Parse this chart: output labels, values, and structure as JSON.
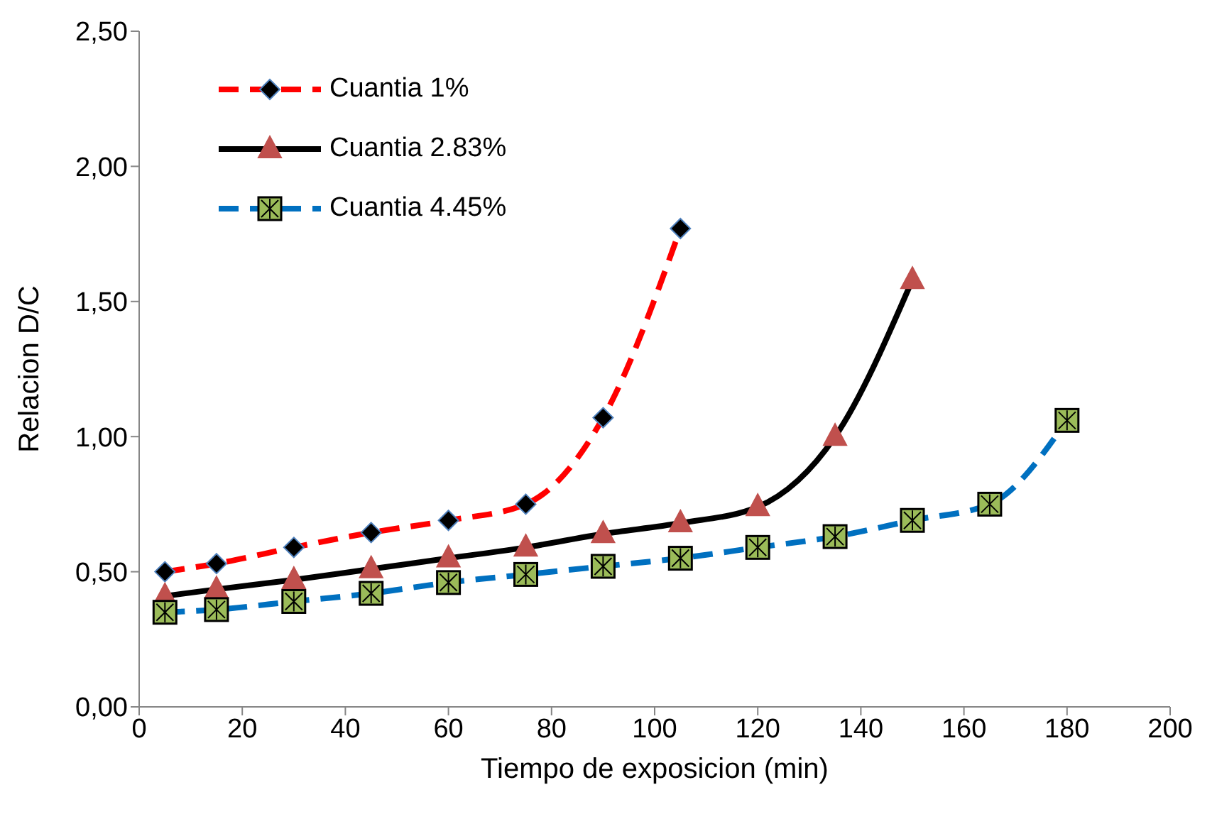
{
  "chart_data": {
    "type": "line",
    "xlabel": "Tiempo de exposicion (min)",
    "ylabel": "Relacion  D/C",
    "xlim": [
      0,
      200
    ],
    "xticks": [
      0,
      20,
      40,
      60,
      80,
      100,
      120,
      140,
      160,
      180,
      200
    ],
    "ylim": [
      0,
      2.5
    ],
    "yticks": [
      {
        "value": 0,
        "label": "0,00"
      },
      {
        "value": 0.5,
        "label": "0,50"
      },
      {
        "value": 1,
        "label": "1,00"
      },
      {
        "value": 1.5,
        "label": "1,50"
      },
      {
        "value": 2,
        "label": "2,00"
      },
      {
        "value": 2.5,
        "label": "2,50"
      }
    ],
    "grid": false,
    "legend": "top left",
    "series": [
      {
        "name": "Cuantia 1%",
        "color": "#ff0000",
        "line_style": "dashed",
        "marker": "diamond",
        "x": [
          5,
          15,
          30,
          45,
          60,
          75,
          90,
          105
        ],
        "values": [
          0.5,
          0.53,
          0.59,
          0.645,
          0.69,
          0.75,
          1.07,
          1.77
        ]
      },
      {
        "name": "Cuantia 2.83%",
        "color": "#000000",
        "line_style": "solid",
        "marker": "triangle",
        "x": [
          5,
          15,
          30,
          45,
          60,
          75,
          90,
          105,
          120,
          135,
          150
        ],
        "values": [
          0.41,
          0.435,
          0.47,
          0.51,
          0.55,
          0.59,
          0.64,
          0.68,
          0.74,
          1.0,
          1.58
        ]
      },
      {
        "name": "Cuantia 4.45%",
        "color": "#0070c0",
        "line_style": "dashed",
        "marker": "square",
        "x": [
          5,
          15,
          30,
          45,
          60,
          75,
          90,
          105,
          120,
          135,
          150,
          165,
          180
        ],
        "values": [
          0.35,
          0.36,
          0.39,
          0.42,
          0.46,
          0.49,
          0.52,
          0.55,
          0.59,
          0.63,
          0.69,
          0.75,
          1.06
        ]
      }
    ]
  }
}
